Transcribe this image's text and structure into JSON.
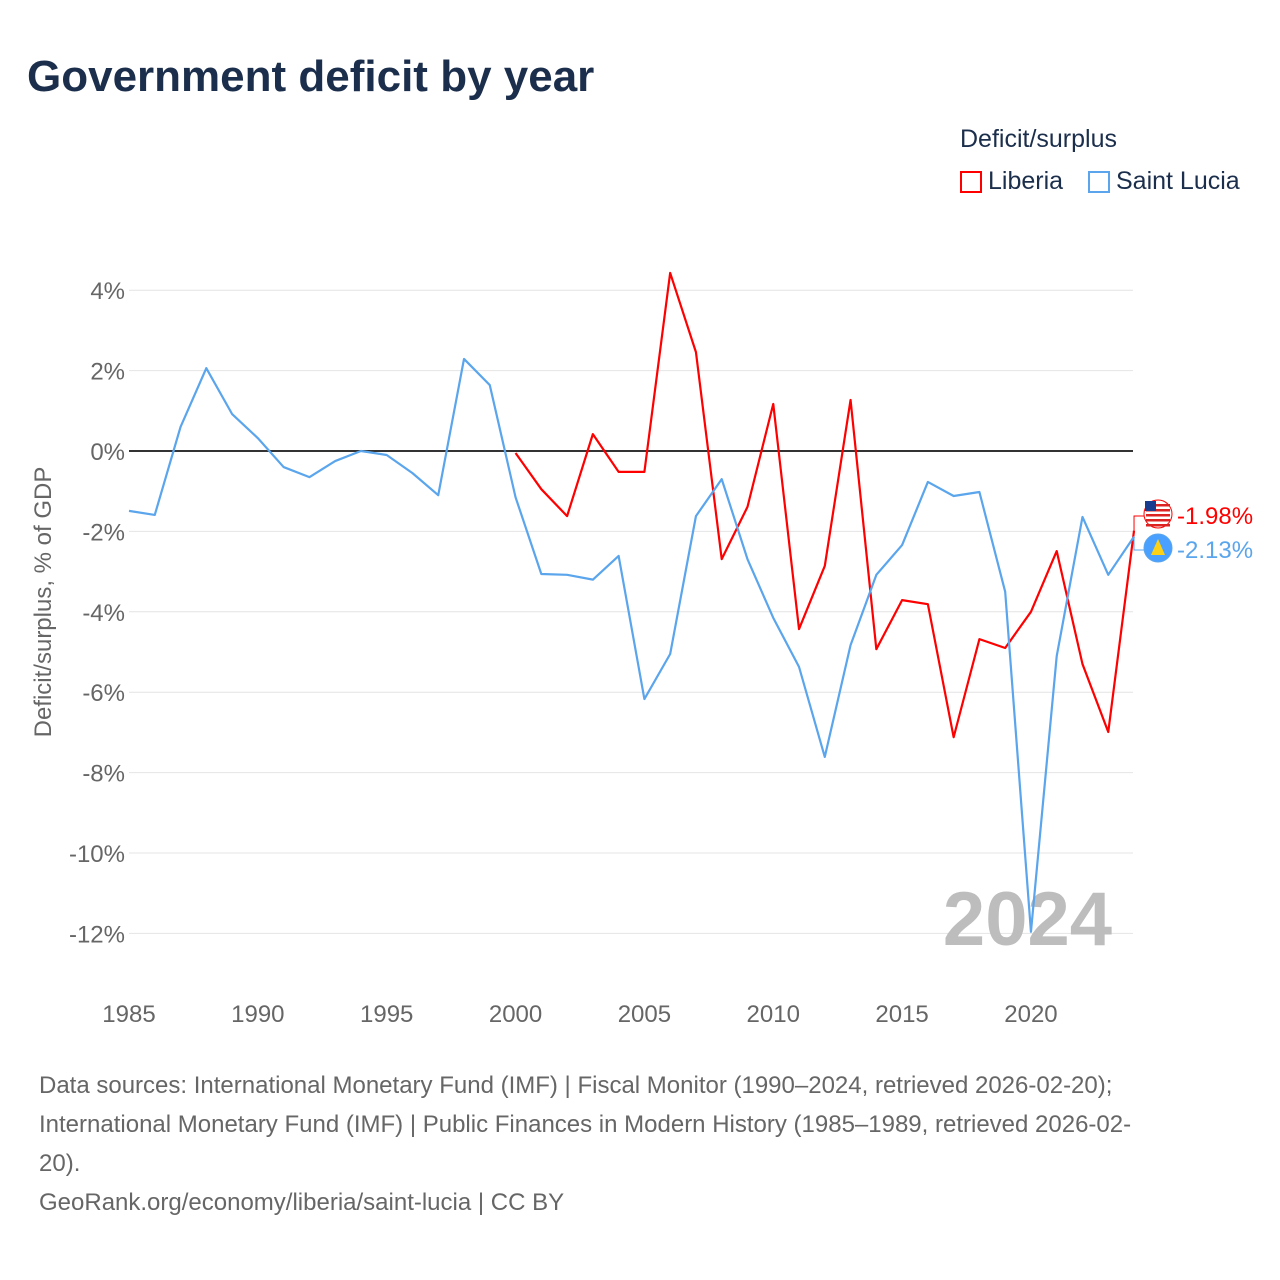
{
  "title": "Government deficit by year",
  "legend": {
    "title": "Deficit/surplus",
    "items": [
      {
        "name": "Liberia",
        "color": "#ff0000"
      },
      {
        "name": "Saint Lucia",
        "color": "#5aa5ec"
      }
    ]
  },
  "watermark_year": "2024",
  "footer": {
    "line1": "Data sources: International Monetary Fund (IMF) | Fiscal Monitor (1990–2024, retrieved 2026-02-20);",
    "line2": "International Monetary Fund (IMF) | Public Finances in Modern History (1985–1989, retrieved 2026-02-",
    "line3": "20).",
    "line4": "GeoRank.org/economy/liberia/saint-lucia | CC BY"
  },
  "chart_data": {
    "type": "line",
    "title": "Government deficit by year",
    "ylabel": "Deficit/surplus, % of GDP",
    "xlabel": "",
    "xlim": [
      1985,
      2024
    ],
    "ylim": [
      -13,
      5
    ],
    "xticks": [
      1985,
      1990,
      1995,
      2000,
      2005,
      2010,
      2015,
      2020
    ],
    "xtick_labels": [
      "1985",
      "1990",
      "1995",
      "2000",
      "2005",
      "2010",
      "2015",
      "2020"
    ],
    "yticks": [
      4,
      2,
      0,
      -2,
      -4,
      -6,
      -8,
      -10,
      -12
    ],
    "ytick_labels": [
      "4%",
      "2%",
      "0%",
      "-2%",
      "-4%",
      "-6%",
      "-8%",
      "-10%",
      "-12%"
    ],
    "series": [
      {
        "name": "Liberia",
        "color": "#ff0000",
        "end_label": "-1.98%",
        "x_start": 2000,
        "values": [
          -0.05,
          -0.95,
          -1.62,
          0.42,
          -0.52,
          -0.52,
          4.43,
          2.46,
          -2.69,
          -1.39,
          1.17,
          -4.43,
          -2.86,
          1.27,
          -4.93,
          -3.71,
          -3.81,
          -7.12,
          -4.68,
          -4.9,
          -4.0,
          -2.49,
          -5.3,
          -6.99,
          -1.98
        ]
      },
      {
        "name": "Saint Lucia",
        "color": "#5aa5ec",
        "end_label": "-2.13%",
        "x_start": 1985,
        "values": [
          -1.49,
          -1.59,
          0.6,
          2.06,
          0.92,
          0.32,
          -0.4,
          -0.65,
          -0.25,
          0,
          -0.1,
          -0.55,
          -1.1,
          2.29,
          1.64,
          -1.15,
          -3.06,
          -3.08,
          -3.2,
          -2.61,
          -6.17,
          -5.05,
          -1.62,
          -0.7,
          -2.69,
          -4.15,
          -5.37,
          -7.61,
          -4.83,
          -3.08,
          -2.34,
          -0.77,
          -1.12,
          -1.02,
          -3.5,
          -11.96,
          -5.1,
          -1.64,
          -3.08,
          -2.13
        ]
      }
    ]
  }
}
